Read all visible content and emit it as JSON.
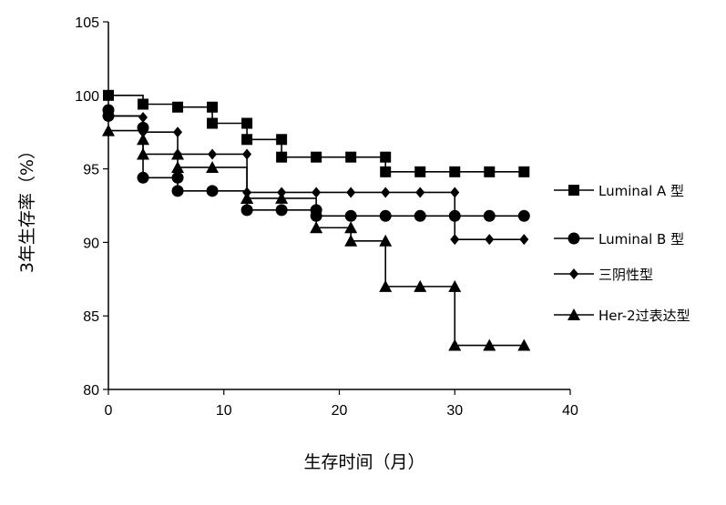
{
  "chart_data": {
    "type": "line",
    "step": true,
    "xlabel": "生存时间（月）",
    "ylabel": "3年生存率（%）",
    "xlim": [
      0,
      40
    ],
    "ylim": [
      80,
      105
    ],
    "xticks": [
      0,
      10,
      20,
      30,
      40
    ],
    "yticks": [
      80,
      85,
      90,
      95,
      100,
      105
    ],
    "grid": false,
    "legend_position": "right",
    "series": [
      {
        "name": "Luminal A 型",
        "marker": "square",
        "x": [
          0,
          3,
          6,
          9,
          9,
          12,
          12,
          15,
          15,
          18,
          21,
          24,
          24,
          27,
          30,
          33,
          36
        ],
        "y": [
          100,
          99.4,
          99.2,
          99.2,
          98.1,
          98.1,
          97,
          97,
          95.8,
          95.8,
          95.8,
          95.8,
          94.8,
          94.8,
          94.8,
          94.8,
          94.8
        ]
      },
      {
        "name": "Luminal B 型",
        "marker": "circle",
        "x": [
          0,
          0,
          3,
          3,
          6,
          6,
          9,
          12,
          15,
          18,
          18,
          21,
          24,
          27,
          30,
          33,
          36
        ],
        "y": [
          99,
          98.6,
          97.8,
          94.4,
          94.4,
          93.5,
          93.5,
          92.2,
          92.2,
          92.2,
          91.8,
          91.8,
          91.8,
          91.8,
          91.8,
          91.8,
          91.8
        ]
      },
      {
        "name": "三阴性型",
        "marker": "diamond",
        "x": [
          0,
          3,
          3,
          6,
          6,
          9,
          12,
          12,
          15,
          18,
          21,
          24,
          27,
          30,
          30,
          33,
          36
        ],
        "y": [
          98.6,
          98.5,
          97.5,
          97.5,
          96,
          96,
          96,
          93.4,
          93.4,
          93.4,
          93.4,
          93.4,
          93.4,
          93.4,
          90.2,
          90.2,
          90.2
        ]
      },
      {
        "name": "Her-2过表达型",
        "marker": "triangle",
        "x": [
          0,
          3,
          3,
          6,
          6,
          9,
          12,
          12,
          15,
          18,
          21,
          21,
          24,
          24,
          27,
          30,
          30,
          33,
          36
        ],
        "y": [
          97.6,
          97,
          96,
          96,
          95.1,
          95.1,
          93,
          93,
          93,
          91,
          91,
          90.1,
          90.1,
          87,
          87,
          87,
          83,
          83,
          83
        ]
      }
    ]
  }
}
